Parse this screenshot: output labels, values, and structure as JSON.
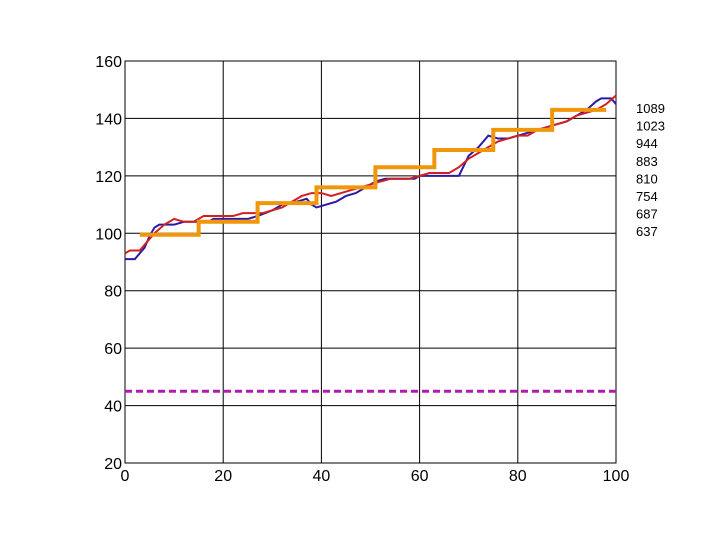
{
  "chart_data": {
    "type": "line",
    "title": "",
    "xlabel": "",
    "ylabel": "",
    "xlim": [
      0,
      100
    ],
    "ylim": [
      20,
      160
    ],
    "grid": true,
    "x_ticks": [
      "0",
      "20",
      "40",
      "60",
      "80",
      "100"
    ],
    "y_ticks": [
      "20",
      "40",
      "60",
      "80",
      "100",
      "120",
      "140",
      "160"
    ],
    "right_labels": [
      "1089",
      "1023",
      "944",
      "883",
      "810",
      "754",
      "687",
      "637"
    ],
    "series": [
      {
        "color": "#2a1aa8",
        "style": "solid",
        "x": [
          0,
          1,
          2,
          3,
          4,
          5,
          6,
          7,
          8,
          9,
          10,
          12,
          14,
          15,
          17,
          18,
          20,
          22,
          25,
          27,
          30,
          32,
          35,
          37,
          38,
          39,
          41,
          43,
          45,
          47,
          49,
          51,
          53,
          55,
          57,
          59,
          60,
          62,
          64,
          66,
          68,
          70,
          72,
          74,
          76,
          78,
          80,
          82,
          84,
          86,
          88,
          90,
          92,
          94,
          96,
          97,
          99,
          100
        ],
        "y": [
          91,
          91,
          91,
          93,
          95,
          99,
          102,
          103,
          103,
          103,
          103,
          104,
          104,
          104,
          104,
          105,
          105,
          105,
          105,
          106,
          108,
          110,
          111,
          112,
          110,
          109,
          110,
          111,
          113,
          114,
          116,
          118,
          119,
          119,
          119,
          119,
          120,
          120,
          120,
          120,
          120,
          127,
          130,
          134,
          133,
          133,
          134,
          135,
          136,
          137,
          138,
          139,
          141,
          143,
          146,
          147,
          147,
          145
        ]
      },
      {
        "color": "#d02020",
        "style": "solid",
        "x": [
          0,
          1,
          3,
          4,
          6,
          8,
          10,
          12,
          14,
          16,
          18,
          20,
          22,
          24,
          26,
          28,
          30,
          32,
          34,
          36,
          38,
          40,
          42,
          44,
          46,
          48,
          50,
          52,
          54,
          56,
          58,
          60,
          62,
          64,
          66,
          68,
          70,
          72,
          74,
          76,
          78,
          80,
          82,
          84,
          86,
          88,
          90,
          92,
          94,
          96,
          98,
          100
        ],
        "y": [
          93,
          94,
          94,
          96,
          100,
          103,
          105,
          104,
          104,
          106,
          106,
          106,
          106,
          107,
          107,
          107,
          108,
          109,
          111,
          113,
          114,
          114,
          113,
          114,
          115,
          116,
          117,
          118,
          119,
          119,
          119,
          120,
          121,
          121,
          121,
          123,
          126,
          128,
          130,
          132,
          133,
          134,
          134,
          136,
          137,
          138,
          139,
          141,
          142,
          143,
          145,
          148
        ]
      },
      {
        "color": "#f0960a",
        "style": "step",
        "x": [
          3,
          15,
          27,
          39,
          51,
          63,
          75,
          87,
          98
        ],
        "y": [
          99.5,
          104,
          110.5,
          116,
          123,
          129,
          136,
          143,
          143
        ]
      },
      {
        "color": "#b01ab0",
        "style": "dashed",
        "x": [
          0,
          100
        ],
        "y": [
          45,
          45
        ]
      }
    ]
  }
}
